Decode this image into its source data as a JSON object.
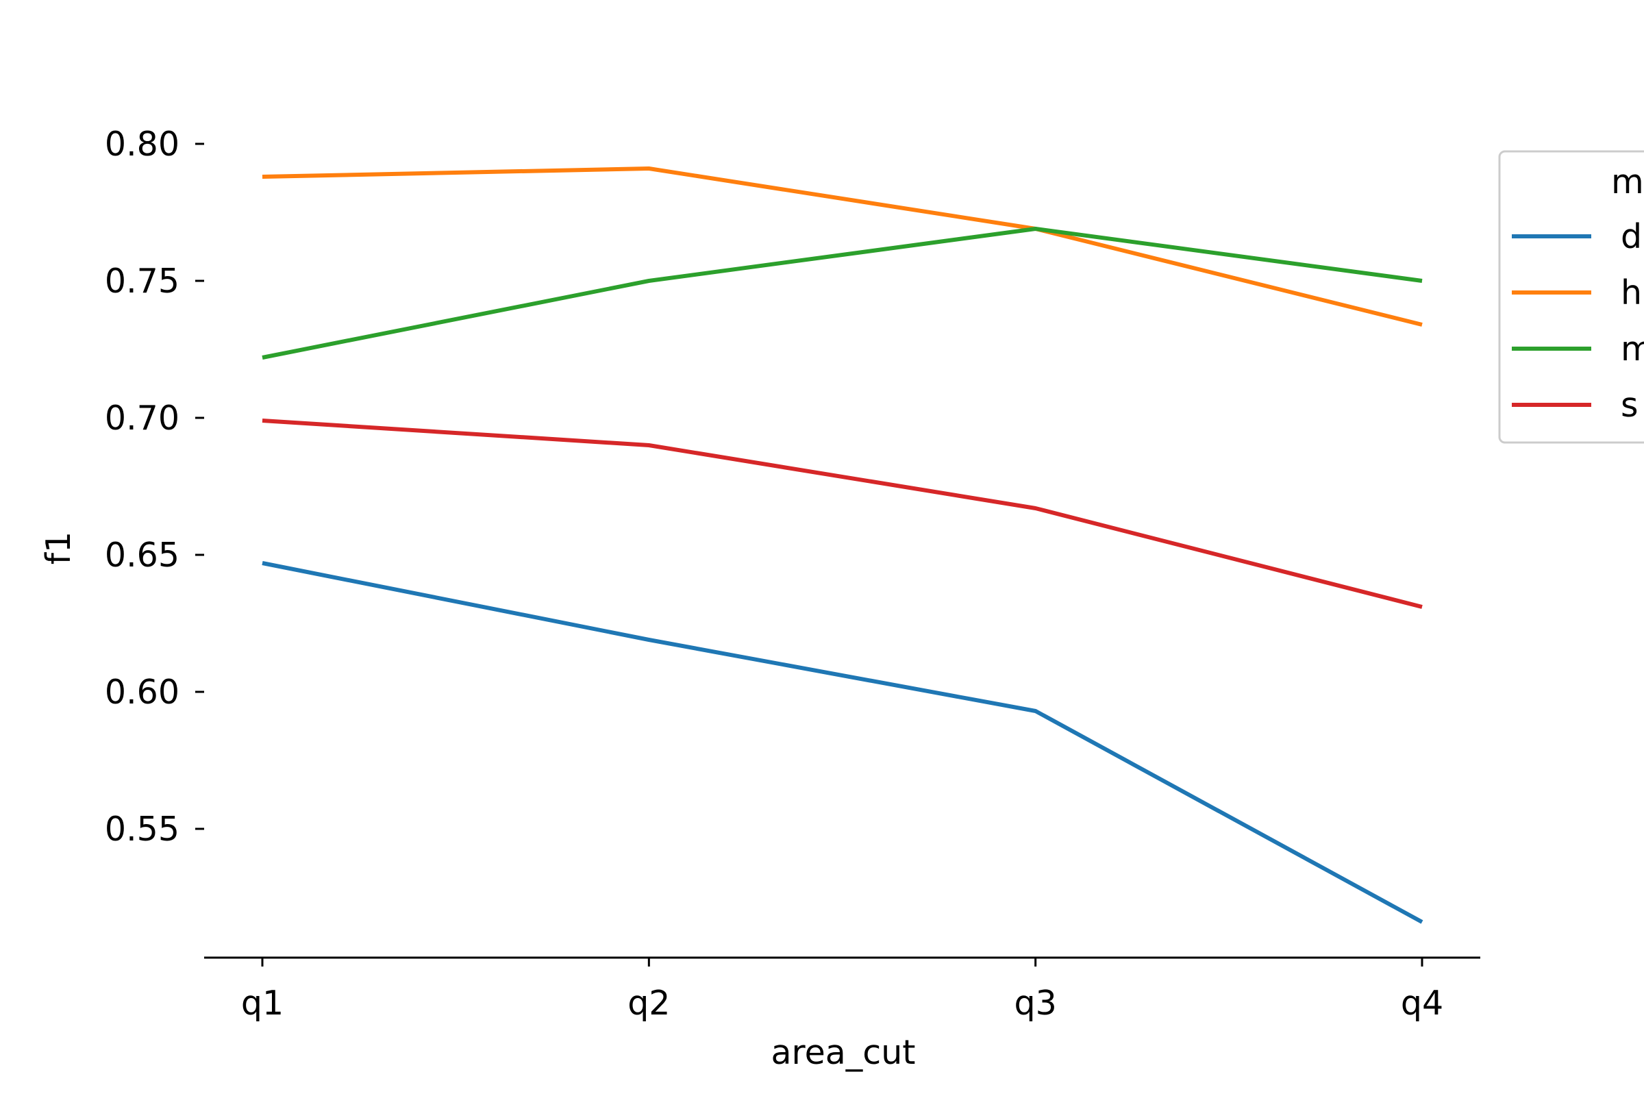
{
  "chart_data": {
    "type": "line",
    "title": "",
    "xlabel": "area_cut",
    "ylabel": "f1",
    "categories": [
      "q1",
      "q2",
      "q3",
      "q4"
    ],
    "ylim": [
      0.505,
      0.825
    ],
    "yticks": [
      0.55,
      0.6,
      0.65,
      0.7,
      0.75,
      0.8
    ],
    "ytick_labels": [
      "0.55",
      "0.60",
      "0.65",
      "0.70",
      "0.75",
      "0.80"
    ],
    "grid": false,
    "legend": {
      "placement": "right, partially outside",
      "title": "m",
      "entries": [
        "d",
        "h",
        "m",
        "s"
      ]
    },
    "series": [
      {
        "name": "d",
        "color": "#1f77b4",
        "values": [
          0.647,
          0.619,
          0.593,
          0.516
        ]
      },
      {
        "name": "h",
        "color": "#ff7f0e",
        "values": [
          0.788,
          0.791,
          0.769,
          0.734
        ]
      },
      {
        "name": "m",
        "color": "#2ca02c",
        "values": [
          0.722,
          0.75,
          0.769,
          0.75
        ]
      },
      {
        "name": "s",
        "color": "#d62728",
        "values": [
          0.699,
          0.69,
          0.667,
          0.631
        ]
      }
    ]
  }
}
